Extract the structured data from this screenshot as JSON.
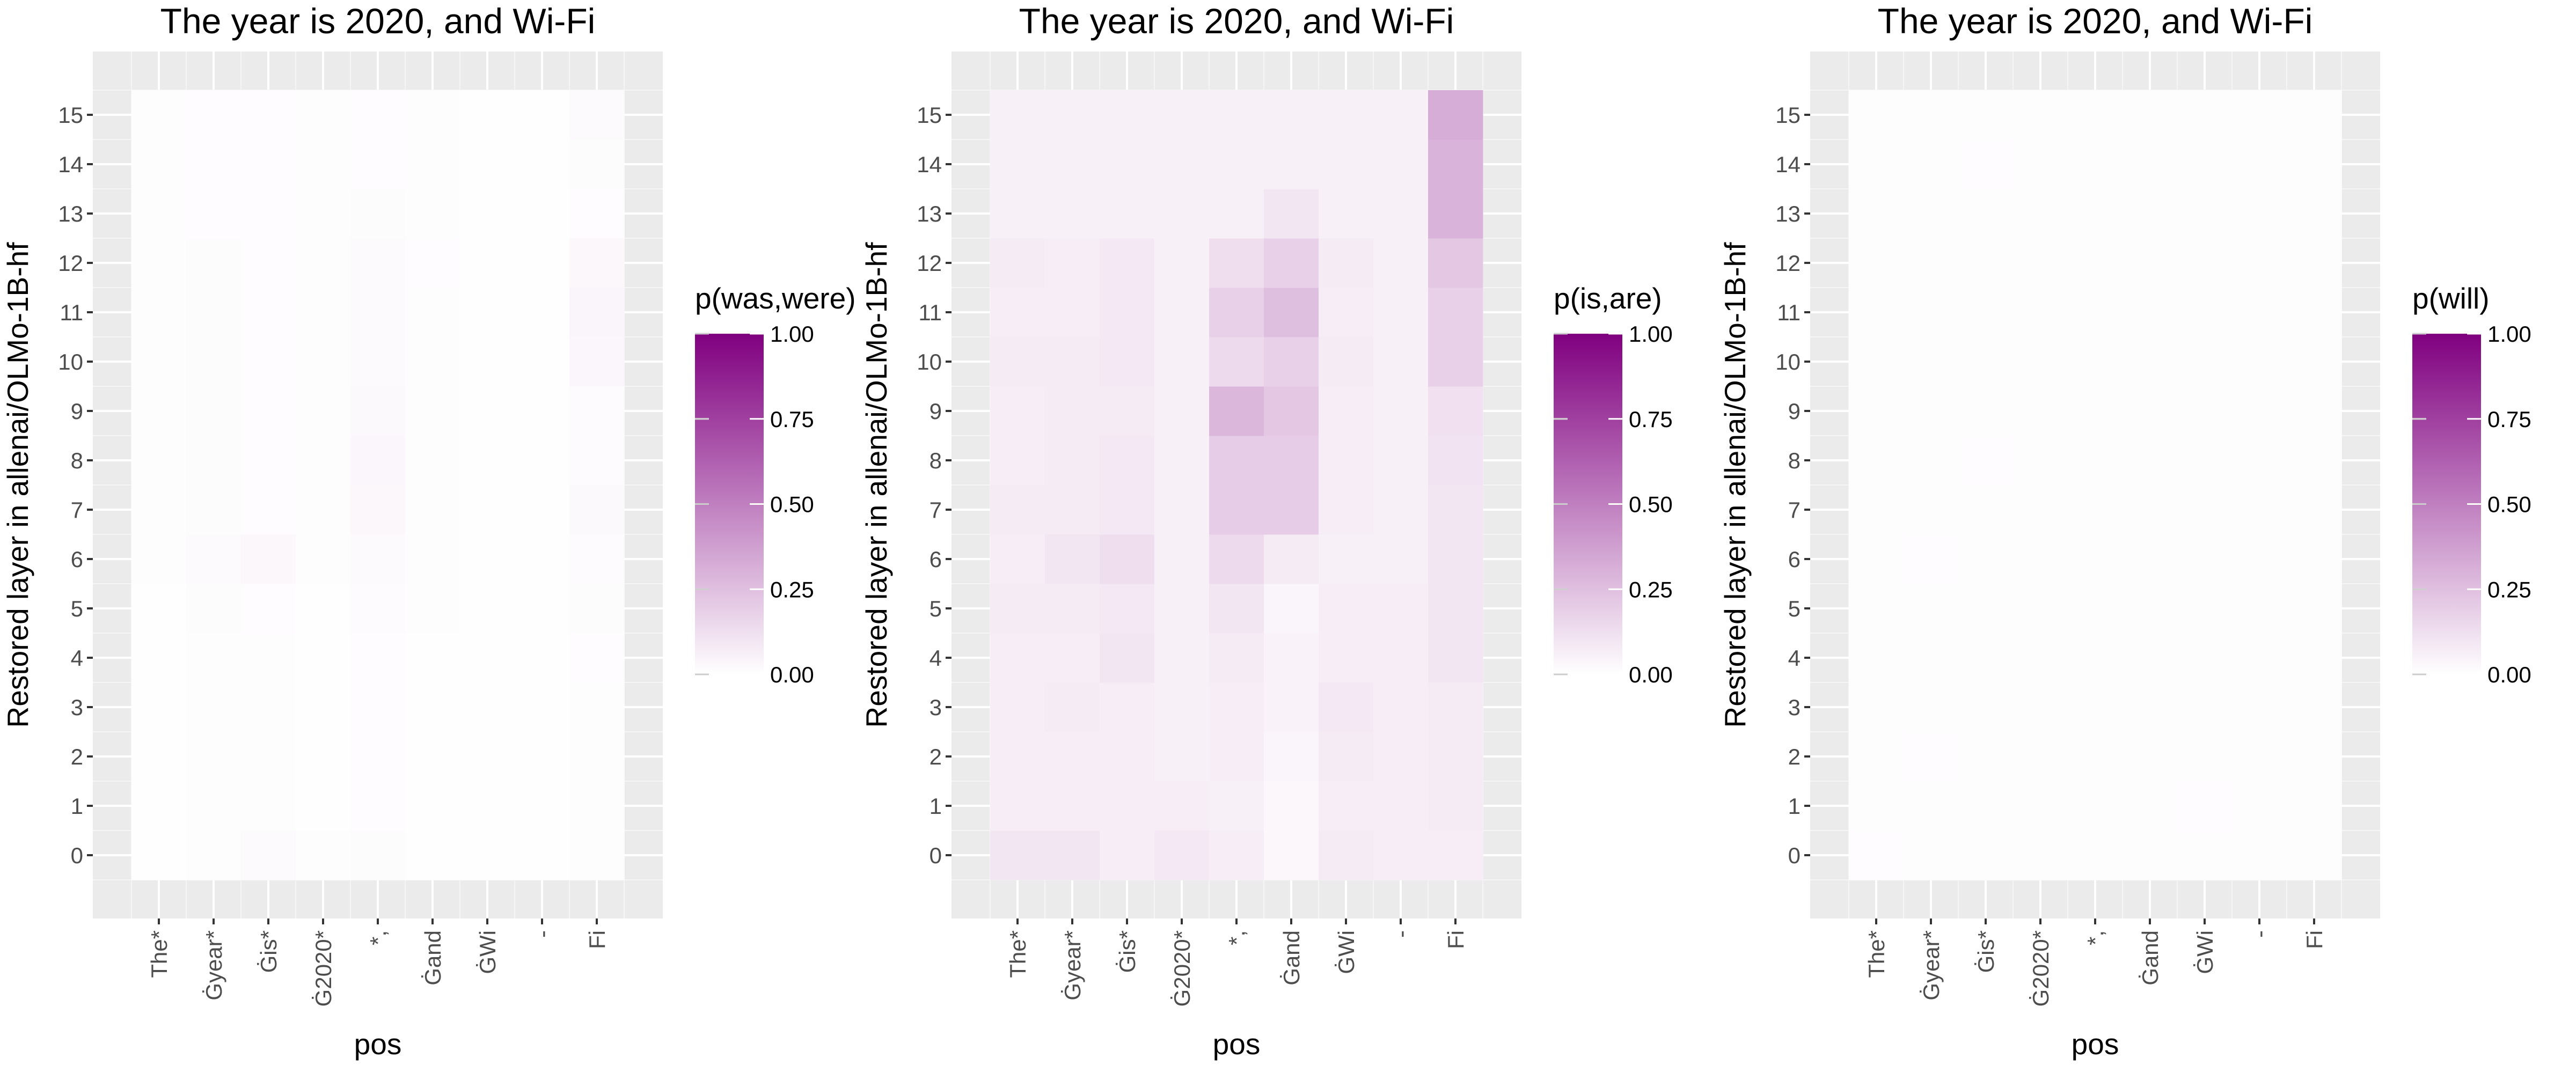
{
  "chart_data": [
    {
      "type": "heatmap",
      "title": "The year is 2020, and Wi-Fi",
      "xlabel": "pos",
      "ylabel": "Restored layer in allenai/OLMo-1B-hf",
      "x_tokens": [
        "The*",
        "Ġyear*",
        "Ġis*",
        "Ġ2020*",
        "*,",
        "Ġand",
        "ĠWi",
        "-",
        "Fi"
      ],
      "y_layers": [
        0,
        1,
        2,
        3,
        4,
        5,
        6,
        7,
        8,
        9,
        10,
        11,
        12,
        13,
        14,
        15
      ],
      "legend": {
        "title": "p(was,were)",
        "range": [
          0,
          1
        ],
        "ticks": [
          "0.00",
          "0.25",
          "0.50",
          "0.75",
          "1.00"
        ],
        "low_color": "#ffffff",
        "high_color": "#800080"
      },
      "values": [
        [
          0.005,
          0.008,
          0.02,
          0.006,
          0.012,
          0.004,
          0.005,
          0.004,
          0.008
        ],
        [
          0.005,
          0.006,
          0.008,
          0.005,
          0.01,
          0.004,
          0.004,
          0.004,
          0.008
        ],
        [
          0.005,
          0.006,
          0.008,
          0.005,
          0.01,
          0.004,
          0.004,
          0.004,
          0.008
        ],
        [
          0.005,
          0.006,
          0.008,
          0.005,
          0.01,
          0.004,
          0.004,
          0.004,
          0.008
        ],
        [
          0.005,
          0.006,
          0.008,
          0.005,
          0.01,
          0.005,
          0.004,
          0.004,
          0.01
        ],
        [
          0.005,
          0.012,
          0.01,
          0.005,
          0.014,
          0.006,
          0.004,
          0.004,
          0.012
        ],
        [
          0.006,
          0.02,
          0.03,
          0.006,
          0.02,
          0.008,
          0.004,
          0.004,
          0.016
        ],
        [
          0.006,
          0.012,
          0.01,
          0.006,
          0.03,
          0.008,
          0.004,
          0.004,
          0.022
        ],
        [
          0.006,
          0.012,
          0.01,
          0.006,
          0.035,
          0.008,
          0.004,
          0.004,
          0.016
        ],
        [
          0.006,
          0.012,
          0.01,
          0.006,
          0.025,
          0.008,
          0.004,
          0.004,
          0.016
        ],
        [
          0.008,
          0.012,
          0.01,
          0.006,
          0.02,
          0.008,
          0.004,
          0.004,
          0.035
        ],
        [
          0.008,
          0.012,
          0.01,
          0.006,
          0.02,
          0.008,
          0.004,
          0.004,
          0.04
        ],
        [
          0.008,
          0.012,
          0.01,
          0.006,
          0.02,
          0.01,
          0.004,
          0.004,
          0.03
        ],
        [
          0.008,
          0.01,
          0.01,
          0.006,
          0.012,
          0.008,
          0.004,
          0.004,
          0.01
        ],
        [
          0.008,
          0.01,
          0.01,
          0.006,
          0.01,
          0.008,
          0.004,
          0.004,
          0.012
        ],
        [
          0.008,
          0.01,
          0.01,
          0.006,
          0.01,
          0.008,
          0.004,
          0.004,
          0.02
        ]
      ]
    },
    {
      "type": "heatmap",
      "title": "The year is 2020, and Wi-Fi",
      "xlabel": "pos",
      "ylabel": "Restored layer in allenai/OLMo-1B-hf",
      "x_tokens": [
        "The*",
        "Ġyear*",
        "Ġis*",
        "Ġ2020*",
        "*,",
        "Ġand",
        "ĠWi",
        "-",
        "Fi"
      ],
      "y_layers": [
        0,
        1,
        2,
        3,
        4,
        5,
        6,
        7,
        8,
        9,
        10,
        11,
        12,
        13,
        14,
        15
      ],
      "legend": {
        "title": "p(is,are)",
        "range": [
          0,
          1
        ],
        "ticks": [
          "0.00",
          "0.25",
          "0.50",
          "0.75",
          "1.00"
        ],
        "low_color": "#ffffff",
        "high_color": "#800080"
      },
      "values": [
        [
          0.1,
          0.1,
          0.07,
          0.09,
          0.07,
          0.03,
          0.08,
          0.07,
          0.07
        ],
        [
          0.07,
          0.07,
          0.07,
          0.07,
          0.06,
          0.03,
          0.07,
          0.07,
          0.08
        ],
        [
          0.07,
          0.07,
          0.07,
          0.06,
          0.07,
          0.04,
          0.08,
          0.07,
          0.08
        ],
        [
          0.07,
          0.08,
          0.07,
          0.06,
          0.07,
          0.05,
          0.09,
          0.07,
          0.08
        ],
        [
          0.07,
          0.07,
          0.1,
          0.06,
          0.08,
          0.05,
          0.07,
          0.07,
          0.1
        ],
        [
          0.08,
          0.08,
          0.09,
          0.06,
          0.1,
          0.04,
          0.07,
          0.07,
          0.1
        ],
        [
          0.07,
          0.1,
          0.13,
          0.06,
          0.14,
          0.08,
          0.06,
          0.06,
          0.1
        ],
        [
          0.08,
          0.08,
          0.09,
          0.06,
          0.2,
          0.2,
          0.07,
          0.06,
          0.1
        ],
        [
          0.07,
          0.08,
          0.09,
          0.06,
          0.2,
          0.2,
          0.07,
          0.06,
          0.11
        ],
        [
          0.07,
          0.08,
          0.08,
          0.06,
          0.28,
          0.22,
          0.07,
          0.06,
          0.12
        ],
        [
          0.08,
          0.08,
          0.09,
          0.06,
          0.14,
          0.18,
          0.08,
          0.06,
          0.18
        ],
        [
          0.07,
          0.07,
          0.09,
          0.06,
          0.18,
          0.25,
          0.07,
          0.06,
          0.18
        ],
        [
          0.08,
          0.07,
          0.09,
          0.06,
          0.13,
          0.18,
          0.08,
          0.06,
          0.22
        ],
        [
          0.06,
          0.06,
          0.06,
          0.06,
          0.06,
          0.1,
          0.06,
          0.06,
          0.3
        ],
        [
          0.06,
          0.06,
          0.06,
          0.06,
          0.06,
          0.06,
          0.06,
          0.06,
          0.3
        ],
        [
          0.06,
          0.06,
          0.06,
          0.06,
          0.06,
          0.06,
          0.06,
          0.06,
          0.32
        ]
      ]
    },
    {
      "type": "heatmap",
      "title": "The year is 2020, and Wi-Fi",
      "xlabel": "pos",
      "ylabel": "Restored layer in allenai/OLMo-1B-hf",
      "x_tokens": [
        "The*",
        "Ġyear*",
        "Ġis*",
        "Ġ2020*",
        "*,",
        "Ġand",
        "ĠWi",
        "-",
        "Fi"
      ],
      "y_layers": [
        0,
        1,
        2,
        3,
        4,
        5,
        6,
        7,
        8,
        9,
        10,
        11,
        12,
        13,
        14,
        15
      ],
      "legend": {
        "title": "p(will)",
        "range": [
          0,
          1
        ],
        "ticks": [
          "0.00",
          "0.25",
          "0.50",
          "0.75",
          "1.00"
        ],
        "low_color": "#ffffff",
        "high_color": "#800080"
      },
      "values": [
        [
          0.01,
          0.006,
          0.006,
          0.006,
          0.006,
          0.006,
          0.008,
          0.006,
          0.006
        ],
        [
          0.006,
          0.008,
          0.006,
          0.006,
          0.006,
          0.006,
          0.01,
          0.006,
          0.006
        ],
        [
          0.006,
          0.01,
          0.006,
          0.006,
          0.006,
          0.006,
          0.006,
          0.006,
          0.006
        ],
        [
          0.006,
          0.008,
          0.006,
          0.006,
          0.006,
          0.008,
          0.006,
          0.006,
          0.006
        ],
        [
          0.006,
          0.006,
          0.006,
          0.006,
          0.006,
          0.008,
          0.006,
          0.006,
          0.006
        ],
        [
          0.006,
          0.006,
          0.006,
          0.006,
          0.006,
          0.008,
          0.006,
          0.006,
          0.006
        ],
        [
          0.006,
          0.01,
          0.006,
          0.006,
          0.006,
          0.008,
          0.006,
          0.006,
          0.006
        ],
        [
          0.006,
          0.006,
          0.006,
          0.006,
          0.008,
          0.008,
          0.006,
          0.006,
          0.006
        ],
        [
          0.006,
          0.008,
          0.01,
          0.006,
          0.008,
          0.008,
          0.006,
          0.006,
          0.006
        ],
        [
          0.006,
          0.008,
          0.008,
          0.006,
          0.008,
          0.008,
          0.006,
          0.006,
          0.006
        ],
        [
          0.006,
          0.008,
          0.008,
          0.006,
          0.008,
          0.008,
          0.006,
          0.006,
          0.006
        ],
        [
          0.006,
          0.008,
          0.008,
          0.006,
          0.008,
          0.008,
          0.006,
          0.006,
          0.006
        ],
        [
          0.006,
          0.008,
          0.008,
          0.006,
          0.008,
          0.008,
          0.006,
          0.006,
          0.006
        ],
        [
          0.008,
          0.008,
          0.006,
          0.006,
          0.006,
          0.008,
          0.006,
          0.006,
          0.006
        ],
        [
          0.008,
          0.006,
          0.01,
          0.006,
          0.006,
          0.006,
          0.006,
          0.006,
          0.006
        ],
        [
          0.006,
          0.006,
          0.006,
          0.006,
          0.006,
          0.006,
          0.006,
          0.006,
          0.006
        ]
      ]
    }
  ]
}
